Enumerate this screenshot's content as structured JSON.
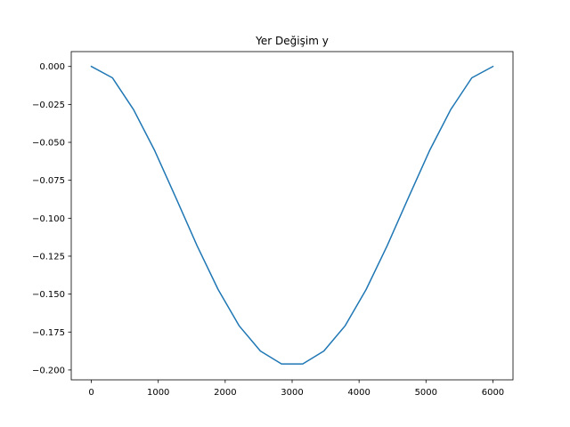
{
  "chart_data": {
    "type": "line",
    "title": "Yer Değişim y",
    "xlabel": "",
    "ylabel": "",
    "xlim": [
      -300,
      6300
    ],
    "ylim": [
      -0.2065,
      0.0098
    ],
    "grid": false,
    "x_ticks": [
      0,
      1000,
      2000,
      3000,
      4000,
      5000,
      6000
    ],
    "x_tick_labels": [
      "0",
      "1000",
      "2000",
      "3000",
      "4000",
      "5000",
      "6000"
    ],
    "y_ticks": [
      0.0,
      -0.025,
      -0.05,
      -0.075,
      -0.1,
      -0.125,
      -0.15,
      -0.175,
      -0.2
    ],
    "y_tick_labels": [
      "0.000",
      "−0.025",
      "−0.050",
      "−0.075",
      "−0.100",
      "−0.125",
      "−0.150",
      "−0.175",
      "−0.200"
    ],
    "series": [
      {
        "color": "#1f77b4",
        "x": [
          0,
          315.8,
          631.6,
          947.4,
          1263.2,
          1578.9,
          1894.7,
          2210.5,
          2526.3,
          2842.1,
          3157.9,
          3473.7,
          3789.5,
          4105.3,
          4421.1,
          4736.8,
          5052.6,
          5368.4,
          5684.2,
          6000
        ],
        "y": [
          0.0,
          -0.0075,
          -0.0285,
          -0.0555,
          -0.0865,
          -0.118,
          -0.147,
          -0.171,
          -0.1875,
          -0.196,
          -0.196,
          -0.1875,
          -0.171,
          -0.147,
          -0.118,
          -0.0865,
          -0.0555,
          -0.0285,
          -0.0075,
          0.0
        ]
      }
    ]
  }
}
